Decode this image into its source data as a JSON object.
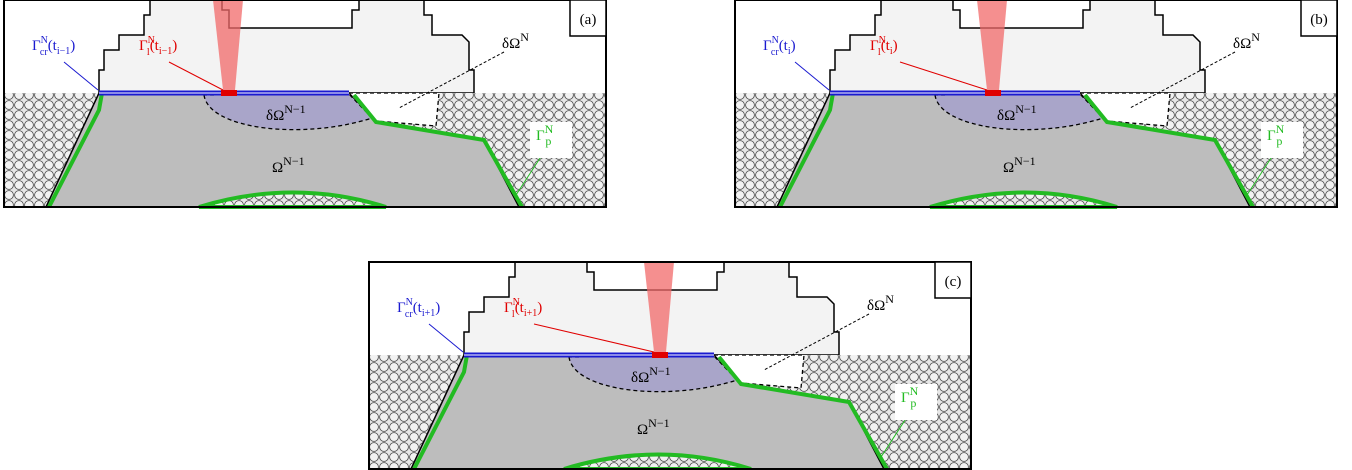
{
  "panels": [
    {
      "tag": "(a)",
      "gamma_cr": {
        "base": "Γ",
        "sup": "N",
        "sub": "cr",
        "arg": "(t",
        "argsub": "i−1",
        "end": ")"
      },
      "gamma_l": {
        "base": "Γ",
        "sup": "N",
        "sub": "l",
        "arg": "(t",
        "argsub": "i−1",
        "end": ")"
      },
      "d_omega_n": {
        "base": "δΩ",
        "sup": "N"
      },
      "d_omega_n1": {
        "base": "δΩ",
        "sup": "N−1"
      },
      "omega_n1": {
        "base": "Ω",
        "sup": "N−1"
      },
      "gamma_p": {
        "base": "Γ",
        "sup": "N",
        "sub": "p"
      }
    },
    {
      "tag": "(b)",
      "gamma_cr": {
        "base": "Γ",
        "sup": "N",
        "sub": "cr",
        "arg": "(t",
        "argsub": "i",
        "end": ")"
      },
      "gamma_l": {
        "base": "Γ",
        "sup": "N",
        "sub": "l",
        "arg": "(t",
        "argsub": "i",
        "end": ")"
      },
      "d_omega_n": {
        "base": "δΩ",
        "sup": "N"
      },
      "d_omega_n1": {
        "base": "δΩ",
        "sup": "N−1"
      },
      "omega_n1": {
        "base": "Ω",
        "sup": "N−1"
      },
      "gamma_p": {
        "base": "Γ",
        "sup": "N",
        "sub": "p"
      }
    },
    {
      "tag": "(c)",
      "gamma_cr": {
        "base": "Γ",
        "sup": "N",
        "sub": "cr",
        "arg": "(t",
        "argsub": "i+1",
        "end": ")"
      },
      "gamma_l": {
        "base": "Γ",
        "sup": "N",
        "sub": "l",
        "arg": "(t",
        "argsub": "i+1",
        "end": ")"
      },
      "d_omega_n": {
        "base": "δΩ",
        "sup": "N"
      },
      "d_omega_n1": {
        "base": "δΩ",
        "sup": "N−1"
      },
      "omega_n1": {
        "base": "Ω",
        "sup": "N−1"
      },
      "gamma_p": {
        "base": "Γ",
        "sup": "N",
        "sub": "p"
      }
    }
  ]
}
